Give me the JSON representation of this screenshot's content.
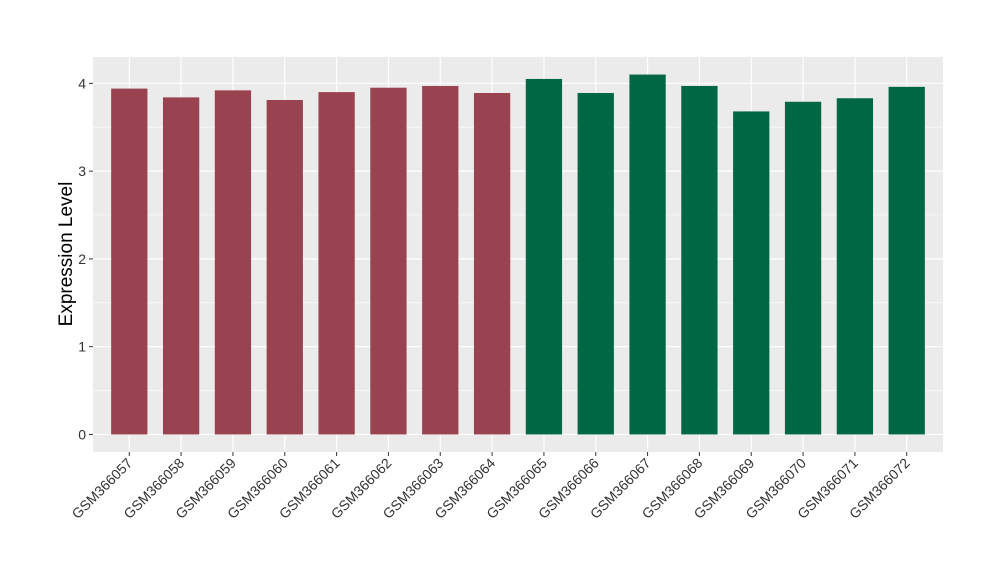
{
  "chart_data": {
    "type": "bar",
    "title": "",
    "xlabel": "",
    "ylabel": "Expression Level",
    "ylim": [
      -0.2,
      4.3
    ],
    "yticks": [
      0,
      1,
      2,
      3,
      4
    ],
    "grid": true,
    "legend": "none",
    "categories": [
      "GSM366057",
      "GSM366058",
      "GSM366059",
      "GSM366060",
      "GSM366061",
      "GSM366062",
      "GSM366063",
      "GSM366064",
      "GSM366065",
      "GSM366066",
      "GSM366067",
      "GSM366068",
      "GSM366069",
      "GSM366070",
      "GSM366071",
      "GSM366072"
    ],
    "values": [
      3.94,
      3.84,
      3.92,
      3.81,
      3.9,
      3.95,
      3.97,
      3.89,
      4.05,
      3.89,
      4.1,
      3.97,
      3.68,
      3.79,
      3.83,
      3.96
    ],
    "bar_colors": [
      "#9a4350",
      "#9a4350",
      "#9a4350",
      "#9a4350",
      "#9a4350",
      "#9a4350",
      "#9a4350",
      "#9a4350",
      "#006744",
      "#006744",
      "#006744",
      "#006744",
      "#006744",
      "#006744",
      "#006744",
      "#006744"
    ],
    "colors": {
      "panel_background": "#ebebeb",
      "grid_major": "#ffffff",
      "group_1": "#9a4350",
      "group_2": "#006744"
    }
  }
}
